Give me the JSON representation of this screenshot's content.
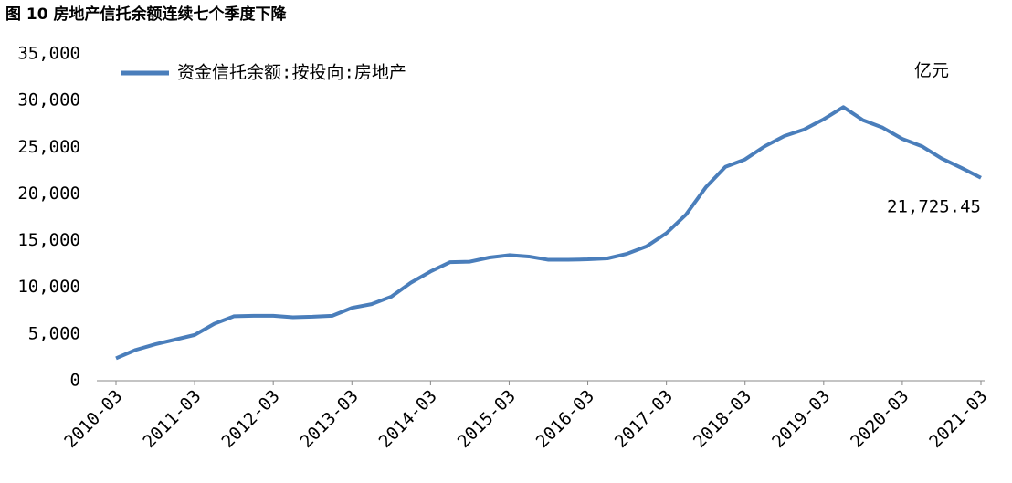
{
  "chart_data": {
    "type": "line",
    "title": "图 10 房地产信托余额连续七个季度下降",
    "unit_label": "亿元",
    "categories": [
      "2010-03",
      null,
      null,
      null,
      "2011-03",
      null,
      null,
      null,
      "2012-03",
      null,
      null,
      null,
      "2013-03",
      null,
      null,
      null,
      "2014-03",
      null,
      null,
      null,
      "2015-03",
      null,
      null,
      null,
      "2016-03",
      null,
      null,
      null,
      "2017-03",
      null,
      null,
      null,
      "2018-03",
      null,
      null,
      null,
      "2019-03",
      null,
      null,
      null,
      "2020-03",
      null,
      null,
      null,
      "2021-03"
    ],
    "series": [
      {
        "name": "资金信托余额:按投向:房地产",
        "color": "#4a7ebb",
        "values": [
          2400,
          3300,
          3900,
          4400,
          4900,
          6100,
          6900,
          6950,
          6950,
          6800,
          6850,
          6950,
          7800,
          8200,
          9000,
          10500,
          11700,
          12700,
          12750,
          13200,
          13450,
          13300,
          12950,
          12950,
          13000,
          13100,
          13600,
          14400,
          15800,
          17800,
          20700,
          22900,
          23700,
          25100,
          26200,
          26900,
          28000,
          29300,
          27900,
          27100,
          25900,
          25100,
          23800,
          22800,
          21725.45
        ],
        "value_labels": [
          null,
          null,
          null,
          null,
          null,
          null,
          null,
          null,
          null,
          null,
          null,
          null,
          null,
          null,
          null,
          null,
          null,
          null,
          null,
          null,
          null,
          null,
          null,
          null,
          null,
          null,
          null,
          null,
          null,
          null,
          null,
          null,
          null,
          null,
          null,
          null,
          null,
          null,
          null,
          null,
          null,
          null,
          null,
          null,
          "21,725.45"
        ]
      }
    ],
    "ylim": [
      0,
      35000
    ],
    "yticks": [
      0,
      {
        "value": 5000,
        "label": "5,000"
      },
      {
        "value": 10000,
        "label": "10,000"
      },
      {
        "value": 15000,
        "label": "15,000"
      },
      {
        "value": 20000,
        "label": "20,000"
      },
      {
        "value": 25000,
        "label": "25,000"
      },
      {
        "value": 30000,
        "label": "30,000"
      },
      {
        "value": 35000,
        "label": "35,000"
      }
    ],
    "grid": false,
    "legend": "top-left"
  }
}
